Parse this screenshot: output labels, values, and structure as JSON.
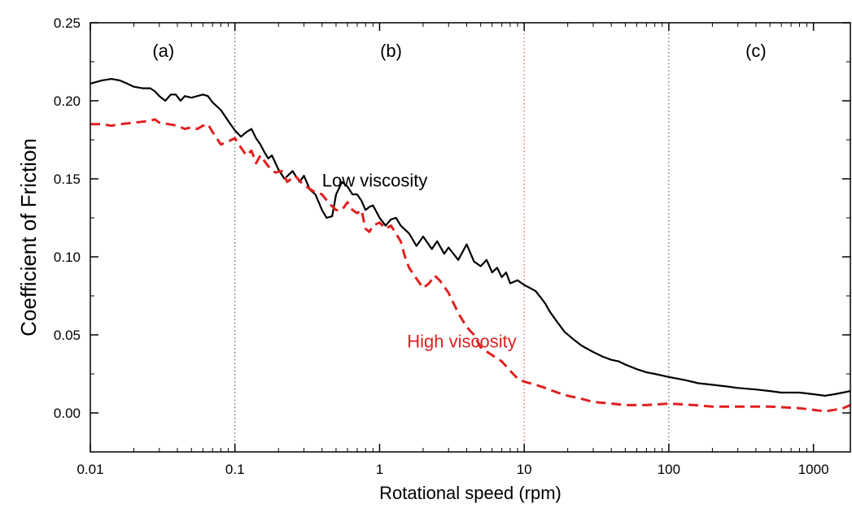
{
  "chart_data": {
    "type": "line",
    "xlabel": "Rotational speed (rpm)",
    "ylabel": "Coefficient of Friction",
    "x_scale": "log",
    "xlim": [
      0.01,
      1800
    ],
    "ylim": [
      -0.025,
      0.25
    ],
    "x_ticks": [
      {
        "value": 0.01,
        "label": "0.01"
      },
      {
        "value": 0.1,
        "label": "0.1"
      },
      {
        "value": 1,
        "label": "1"
      },
      {
        "value": 10,
        "label": "10"
      },
      {
        "value": 100,
        "label": "100"
      },
      {
        "value": 1000,
        "label": "1000"
      }
    ],
    "y_ticks": [
      {
        "value": 0.0,
        "label": "0.00"
      },
      {
        "value": 0.05,
        "label": "0.05"
      },
      {
        "value": 0.1,
        "label": "0.10"
      },
      {
        "value": 0.15,
        "label": "0.15"
      },
      {
        "value": 0.2,
        "label": "0.20"
      },
      {
        "value": 0.25,
        "label": "0.25"
      }
    ],
    "region_dividers": [
      {
        "x": 0.1,
        "color": "#444444"
      },
      {
        "x": 10,
        "color": "#e03030"
      },
      {
        "x": 100,
        "color": "#444444"
      }
    ],
    "region_labels": [
      {
        "label": "(a)",
        "x": 0.032,
        "y": 0.228
      },
      {
        "label": "(b)",
        "x": 1.2,
        "y": 0.228
      },
      {
        "label": "(c)",
        "x": 400,
        "y": 0.228
      }
    ],
    "annotations": [
      {
        "text": "Low viscosity",
        "x": 0.4,
        "y": 0.145,
        "color": "#000000",
        "anchor": "start"
      },
      {
        "text": "High viscosity",
        "x": 1.55,
        "y": 0.042,
        "color": "#e02020",
        "anchor": "start"
      }
    ],
    "series": [
      {
        "color": "#000000",
        "dash": "solid",
        "points": [
          [
            0.01,
            0.211
          ],
          [
            0.012,
            0.213
          ],
          [
            0.014,
            0.214
          ],
          [
            0.016,
            0.213
          ],
          [
            0.018,
            0.211
          ],
          [
            0.02,
            0.209
          ],
          [
            0.023,
            0.208
          ],
          [
            0.026,
            0.208
          ],
          [
            0.028,
            0.206
          ],
          [
            0.03,
            0.203
          ],
          [
            0.033,
            0.2
          ],
          [
            0.036,
            0.204
          ],
          [
            0.039,
            0.204
          ],
          [
            0.042,
            0.2
          ],
          [
            0.045,
            0.203
          ],
          [
            0.05,
            0.202
          ],
          [
            0.055,
            0.203
          ],
          [
            0.06,
            0.204
          ],
          [
            0.065,
            0.203
          ],
          [
            0.07,
            0.199
          ],
          [
            0.08,
            0.194
          ],
          [
            0.09,
            0.187
          ],
          [
            0.1,
            0.181
          ],
          [
            0.11,
            0.177
          ],
          [
            0.12,
            0.18
          ],
          [
            0.13,
            0.182
          ],
          [
            0.14,
            0.176
          ],
          [
            0.15,
            0.172
          ],
          [
            0.16,
            0.167
          ],
          [
            0.17,
            0.163
          ],
          [
            0.18,
            0.165
          ],
          [
            0.2,
            0.156
          ],
          [
            0.22,
            0.15
          ],
          [
            0.25,
            0.155
          ],
          [
            0.28,
            0.148
          ],
          [
            0.3,
            0.152
          ],
          [
            0.33,
            0.143
          ],
          [
            0.36,
            0.14
          ],
          [
            0.4,
            0.13
          ],
          [
            0.43,
            0.125
          ],
          [
            0.47,
            0.126
          ],
          [
            0.5,
            0.14
          ],
          [
            0.55,
            0.148
          ],
          [
            0.6,
            0.145
          ],
          [
            0.65,
            0.14
          ],
          [
            0.7,
            0.14
          ],
          [
            0.75,
            0.136
          ],
          [
            0.8,
            0.13
          ],
          [
            0.85,
            0.132
          ],
          [
            0.9,
            0.133
          ],
          [
            1.0,
            0.125
          ],
          [
            1.1,
            0.12
          ],
          [
            1.2,
            0.124
          ],
          [
            1.3,
            0.125
          ],
          [
            1.4,
            0.12
          ],
          [
            1.6,
            0.115
          ],
          [
            1.8,
            0.107
          ],
          [
            2.0,
            0.113
          ],
          [
            2.3,
            0.105
          ],
          [
            2.5,
            0.11
          ],
          [
            2.8,
            0.102
          ],
          [
            3.0,
            0.106
          ],
          [
            3.5,
            0.098
          ],
          [
            4.0,
            0.108
          ],
          [
            4.5,
            0.097
          ],
          [
            5.0,
            0.094
          ],
          [
            5.5,
            0.098
          ],
          [
            6.0,
            0.09
          ],
          [
            6.5,
            0.093
          ],
          [
            7.0,
            0.087
          ],
          [
            7.5,
            0.09
          ],
          [
            8.0,
            0.083
          ],
          [
            9.0,
            0.085
          ],
          [
            10.0,
            0.082
          ],
          [
            11.0,
            0.08
          ],
          [
            12.0,
            0.078
          ],
          [
            13.0,
            0.074
          ],
          [
            14.0,
            0.07
          ],
          [
            15.0,
            0.065
          ],
          [
            17.0,
            0.058
          ],
          [
            19.0,
            0.052
          ],
          [
            22.0,
            0.047
          ],
          [
            25.0,
            0.043
          ],
          [
            30.0,
            0.039
          ],
          [
            35.0,
            0.036
          ],
          [
            40.0,
            0.034
          ],
          [
            45.0,
            0.033
          ],
          [
            50.0,
            0.031
          ],
          [
            60.0,
            0.028
          ],
          [
            70.0,
            0.026
          ],
          [
            80.0,
            0.025
          ],
          [
            100.0,
            0.023
          ],
          [
            130.0,
            0.021
          ],
          [
            160.0,
            0.019
          ],
          [
            200.0,
            0.018
          ],
          [
            250.0,
            0.017
          ],
          [
            300.0,
            0.016
          ],
          [
            400.0,
            0.015
          ],
          [
            500.0,
            0.014
          ],
          [
            600.0,
            0.013
          ],
          [
            800.0,
            0.013
          ],
          [
            1000.0,
            0.012
          ],
          [
            1200.0,
            0.011
          ],
          [
            1400.0,
            0.012
          ],
          [
            1600.0,
            0.013
          ],
          [
            1800.0,
            0.014
          ]
        ]
      },
      {
        "color": "#e02020",
        "dash": "dashed",
        "points": [
          [
            0.01,
            0.185
          ],
          [
            0.012,
            0.185
          ],
          [
            0.014,
            0.184
          ],
          [
            0.016,
            0.185
          ],
          [
            0.02,
            0.186
          ],
          [
            0.025,
            0.187
          ],
          [
            0.028,
            0.188
          ],
          [
            0.03,
            0.186
          ],
          [
            0.035,
            0.185
          ],
          [
            0.04,
            0.184
          ],
          [
            0.045,
            0.182
          ],
          [
            0.05,
            0.183
          ],
          [
            0.055,
            0.182
          ],
          [
            0.06,
            0.184
          ],
          [
            0.065,
            0.185
          ],
          [
            0.07,
            0.18
          ],
          [
            0.08,
            0.172
          ],
          [
            0.09,
            0.174
          ],
          [
            0.1,
            0.176
          ],
          [
            0.11,
            0.17
          ],
          [
            0.12,
            0.165
          ],
          [
            0.13,
            0.168
          ],
          [
            0.14,
            0.16
          ],
          [
            0.15,
            0.165
          ],
          [
            0.17,
            0.158
          ],
          [
            0.19,
            0.154
          ],
          [
            0.21,
            0.155
          ],
          [
            0.23,
            0.148
          ],
          [
            0.26,
            0.152
          ],
          [
            0.3,
            0.146
          ],
          [
            0.35,
            0.142
          ],
          [
            0.4,
            0.14
          ],
          [
            0.45,
            0.134
          ],
          [
            0.5,
            0.13
          ],
          [
            0.55,
            0.13
          ],
          [
            0.6,
            0.135
          ],
          [
            0.65,
            0.13
          ],
          [
            0.7,
            0.128
          ],
          [
            0.75,
            0.13
          ],
          [
            0.8,
            0.118
          ],
          [
            0.85,
            0.116
          ],
          [
            0.9,
            0.12
          ],
          [
            1.0,
            0.122
          ],
          [
            1.1,
            0.118
          ],
          [
            1.2,
            0.12
          ],
          [
            1.4,
            0.11
          ],
          [
            1.5,
            0.1
          ],
          [
            1.6,
            0.093
          ],
          [
            1.8,
            0.086
          ],
          [
            2.0,
            0.08
          ],
          [
            2.2,
            0.083
          ],
          [
            2.4,
            0.088
          ],
          [
            2.6,
            0.085
          ],
          [
            3.0,
            0.077
          ],
          [
            3.5,
            0.064
          ],
          [
            4.0,
            0.055
          ],
          [
            4.5,
            0.05
          ],
          [
            5.0,
            0.042
          ],
          [
            6.0,
            0.037
          ],
          [
            7.0,
            0.033
          ],
          [
            8.0,
            0.027
          ],
          [
            9.0,
            0.022
          ],
          [
            10.0,
            0.02
          ],
          [
            12.0,
            0.018
          ],
          [
            14.0,
            0.016
          ],
          [
            17.0,
            0.013
          ],
          [
            20.0,
            0.011
          ],
          [
            25.0,
            0.009
          ],
          [
            30.0,
            0.007
          ],
          [
            40.0,
            0.006
          ],
          [
            50.0,
            0.005
          ],
          [
            70.0,
            0.005
          ],
          [
            100.0,
            0.006
          ],
          [
            150.0,
            0.005
          ],
          [
            200.0,
            0.004
          ],
          [
            300.0,
            0.004
          ],
          [
            500.0,
            0.004
          ],
          [
            800.0,
            0.003
          ],
          [
            1000.0,
            0.002
          ],
          [
            1200.0,
            0.001
          ],
          [
            1400.0,
            0.002
          ],
          [
            1600.0,
            0.003
          ],
          [
            1800.0,
            0.005
          ]
        ]
      }
    ]
  }
}
